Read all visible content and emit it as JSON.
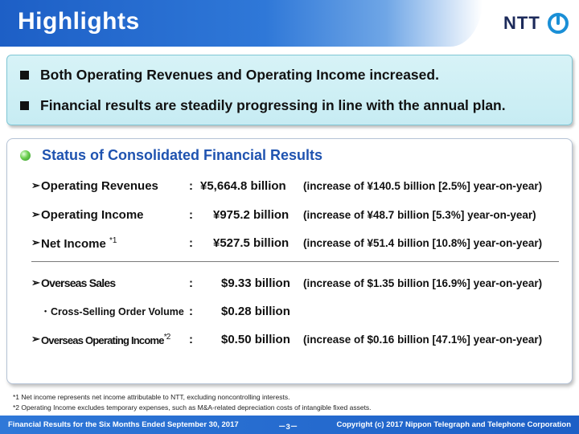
{
  "header": {
    "title": "Highlights",
    "logo_text": "NTT"
  },
  "highlights": [
    "Both Operating Revenues and Operating Income increased.",
    "Financial results are steadily progressing in line with the annual plan."
  ],
  "section": {
    "title": "Status of Consolidated Financial Results",
    "rows": [
      {
        "label": "Operating Revenues",
        "note": "",
        "value": "¥5,664.8 billion",
        "detail": "(increase of ¥140.5 billion [2.5%]  year-on-year)"
      },
      {
        "label": "Operating Income",
        "note": "",
        "value": "¥975.2 billion",
        "detail": "(increase of  ¥48.7 billion [5.3%]  year-on-year)"
      },
      {
        "label": "Net Income",
        "note": "*1",
        "value": "¥527.5 billion",
        "detail": "(increase of  ¥51.4 billion [10.8%] year-on-year)"
      },
      {
        "label": "Overseas Sales",
        "note": "",
        "value": "$9.33 billion",
        "detail": "(increase of  $1.35 billion [16.9%] year-on-year)"
      },
      {
        "label": "Cross-Selling Order Volume",
        "note": "",
        "value": "$0.28 billion",
        "detail": ""
      },
      {
        "label": "Overseas Operating Income",
        "note": "*2",
        "value": "$0.50 billion",
        "detail": "(increase of  $0.16 billion [47.1%] year-on-year)"
      }
    ],
    "colon": ":"
  },
  "footnotes": [
    "*1 Net income represents net income attributable to NTT, excluding noncontrolling interests.",
    "*2 Operating Income excludes temporary expenses, such as M&A-related depreciation costs of intangible fixed assets."
  ],
  "footer": {
    "left": "Financial Results for the Six Months Ended September 30, 2017",
    "page": "－3－",
    "right": "Copyright (c) 2017 Nippon Telegraph and Telephone Corporation"
  },
  "colors": {
    "title_blue": "#1d5fc6",
    "section_blue": "#1f53b0",
    "box_cyan": "#c7ecf3"
  }
}
